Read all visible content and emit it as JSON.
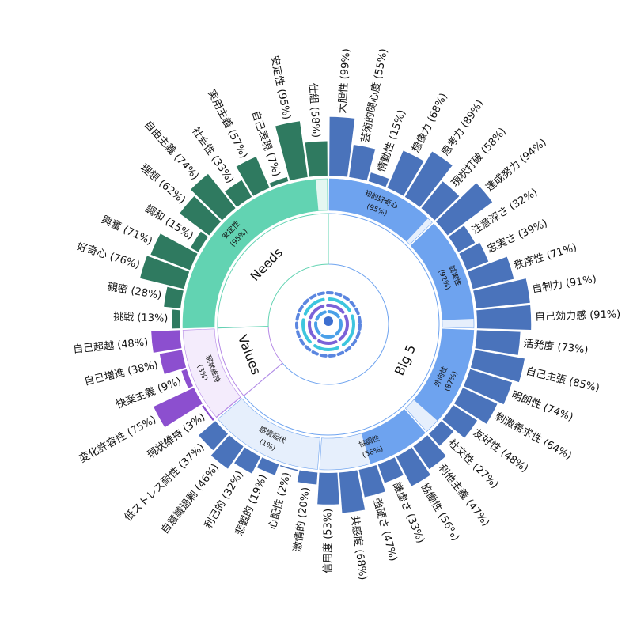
{
  "chart_data": {
    "type": "sunburst",
    "groups": [
      {
        "name": "Big 5",
        "color": "#4a73bb",
        "trait_color": "#6ea3ef",
        "light_color": "#e6effc",
        "traits": [
          {
            "name": "知的好奇心",
            "value": 95,
            "value_label": "(95%)",
            "facets": [
              {
                "label": "大胆性 (99%)",
                "value": 99
              },
              {
                "label": "芸術的関心度 (55%)",
                "value": 55
              },
              {
                "label": "情動性 (15%)",
                "value": 15
              },
              {
                "label": "想像力 (68%)",
                "value": 68
              },
              {
                "label": "思考力 (89%)",
                "value": 89
              },
              {
                "label": "現状打破 (58%)",
                "value": 58
              }
            ]
          },
          {
            "name": "誠実性",
            "value": 92,
            "value_label": "(92%)",
            "facets": [
              {
                "label": "達成努力 (94%)",
                "value": 94
              },
              {
                "label": "注意深さ (32%)",
                "value": 32
              },
              {
                "label": "忠実さ (39%)",
                "value": 39
              },
              {
                "label": "秩序性 (71%)",
                "value": 71
              },
              {
                "label": "自制力 (91%)",
                "value": 91
              },
              {
                "label": "自己効力感 (91%)",
                "value": 91
              }
            ]
          },
          {
            "name": "外向性",
            "value": 87,
            "value_label": "(87%)",
            "facets": [
              {
                "label": "活発度 (73%)",
                "value": 73
              },
              {
                "label": "自己主張 (85%)",
                "value": 85
              },
              {
                "label": "明朗性 (74%)",
                "value": 74
              },
              {
                "label": "刺激希求性 (64%)",
                "value": 64
              },
              {
                "label": "友好性 (48%)",
                "value": 48
              },
              {
                "label": "社交性 (27%)",
                "value": 27
              }
            ]
          },
          {
            "name": "協調性",
            "value": 56,
            "value_label": "(56%)",
            "facets": [
              {
                "label": "利他主義 (47%)",
                "value": 47
              },
              {
                "label": "協働性 (56%)",
                "value": 56
              },
              {
                "label": "謙虚さ (33%)",
                "value": 33
              },
              {
                "label": "強硬さ (47%)",
                "value": 47
              },
              {
                "label": "共感度 (68%)",
                "value": 68
              },
              {
                "label": "信用度 (53%)",
                "value": 53
              }
            ]
          },
          {
            "name": "感情起伏",
            "value": 1,
            "value_label": "(1%)",
            "facets": [
              {
                "label": "激情的 (20%)",
                "value": 20
              },
              {
                "label": "心配性 (2%)",
                "value": 2
              },
              {
                "label": "悲観的 (19%)",
                "value": 19
              },
              {
                "label": "利己的 (32%)",
                "value": 32
              },
              {
                "label": "自意識過剰 (46%)",
                "value": 46
              },
              {
                "label": "低ストレス耐性 (37%)",
                "value": 37
              }
            ]
          }
        ]
      },
      {
        "name": "Values",
        "color": "#8c4fcf",
        "trait_color": "#b68ae6",
        "light_color": "#f4ecfc",
        "traits": [
          {
            "name": "現状維持",
            "value": 3,
            "value_label": "(3%)",
            "facets": [
              {
                "label": "現状維持 (3%)",
                "value": 3
              },
              {
                "label": "変化許容性 (75%)",
                "value": 75
              },
              {
                "label": "快楽主義 (9%)",
                "value": 9
              },
              {
                "label": "自己増進 (38%)",
                "value": 38
              },
              {
                "label": "自己超越 (48%)",
                "value": 48
              }
            ]
          }
        ]
      },
      {
        "name": "Needs",
        "color": "#2f7a60",
        "trait_color": "#62d3b2",
        "light_color": "#e4f7f1",
        "traits": [
          {
            "name": "安定性",
            "value": 95,
            "value_label": "(95%)",
            "facets": [
              {
                "label": "挑戦 (13%)",
                "value": 13
              },
              {
                "label": "親密 (28%)",
                "value": 28
              },
              {
                "label": "好奇心 (76%)",
                "value": 76
              },
              {
                "label": "興奮 (71%)",
                "value": 71
              },
              {
                "label": "調和 (15%)",
                "value": 15
              },
              {
                "label": "理想 (62%)",
                "value": 62
              },
              {
                "label": "自由主義 (74%)",
                "value": 74
              },
              {
                "label": "社会性 (33%)",
                "value": 33
              },
              {
                "label": "実用主義 (57%)",
                "value": 57
              },
              {
                "label": "自己表現 (7%)",
                "value": 7
              },
              {
                "label": "安定性 (95%)",
                "value": 95
              },
              {
                "label": "仕組 (58%)",
                "value": 58
              }
            ]
          }
        ]
      }
    ]
  }
}
